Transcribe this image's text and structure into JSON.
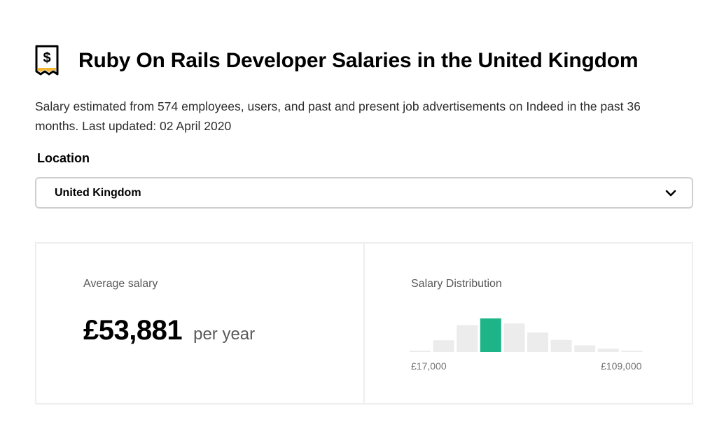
{
  "header": {
    "title": "Ruby On Rails Developer Salaries in the United Kingdom",
    "icon": "salary-receipt-icon"
  },
  "subtitle": "Salary estimated from 574 employees, users, and past and present job advertisements on Indeed in the past 36 months. Last updated: 02 April 2020",
  "location": {
    "label": "Location",
    "selected": "United Kingdom"
  },
  "average_salary": {
    "label": "Average salary",
    "amount": "£53,881",
    "period": "per year"
  },
  "distribution": {
    "label": "Salary Distribution",
    "min_label": "£17,000",
    "max_label": "£109,000",
    "highlight_color": "#1db587",
    "bar_color": "#ececec"
  },
  "chart_data": {
    "type": "bar",
    "x_range": [
      17000,
      109000
    ],
    "values": [
      0.04,
      0.35,
      0.8,
      1.0,
      0.85,
      0.58,
      0.36,
      0.2,
      0.1,
      0.04
    ],
    "highlight_index": 3,
    "grid": false
  }
}
